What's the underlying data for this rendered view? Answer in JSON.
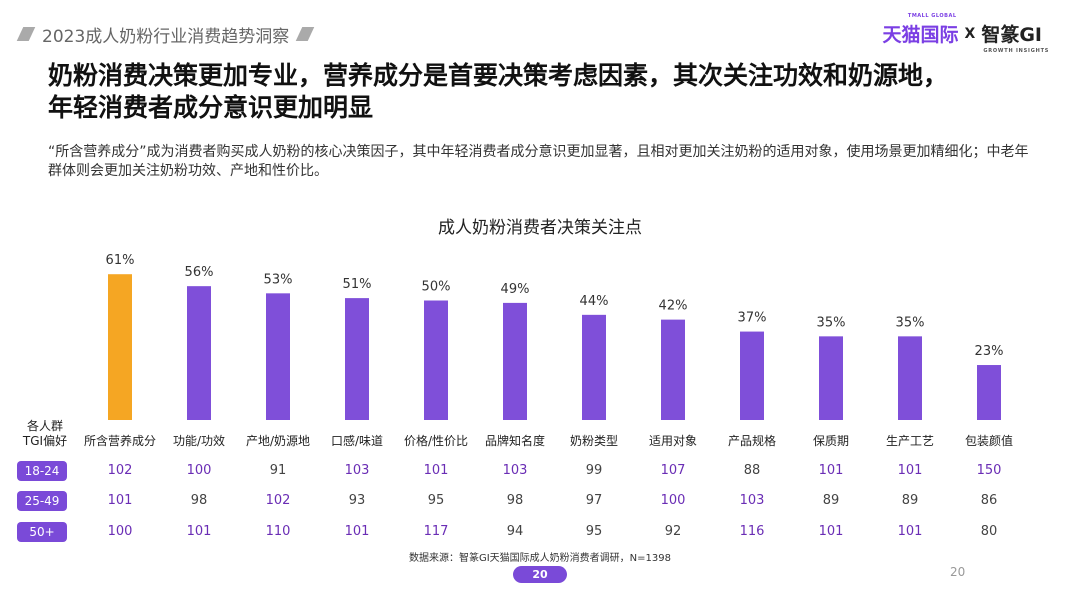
{
  "header": {
    "report_title": "2023成人奶粉行业消费趋势洞察",
    "brand_tmall": "天猫国际",
    "brand_tmall_sub": "TMALL GLOBAL",
    "brand_x": "X",
    "brand_gi": "智篆GI",
    "brand_gi_sub": "GROWTH INSIGHTS"
  },
  "headline": {
    "line1": "奶粉消费决策更加专业，营养成分是首要决策考虑因素，其次关注功效和奶源地，",
    "line2": "年轻消费者成分意识更加明显"
  },
  "subtext": "“所含营养成分”成为消费者购买成人奶粉的核心决策因子，其中年轻消费者成分意识更加显著，且相对更加关注奶粉的适用对象，使用场景更加精细化；中老年群体则会更加关注奶粉功效、产地和性价比。",
  "chart_data": {
    "type": "bar",
    "title": "成人奶粉消费者决策关注点",
    "categories": [
      "所含营养成分",
      "功能/功效",
      "产地/奶源地",
      "口感/味道",
      "价格/性价比",
      "品牌知名度",
      "奶粉类型",
      "适用对象",
      "产品规格",
      "保质期",
      "生产工艺",
      "包装颜值"
    ],
    "values": [
      61,
      56,
      53,
      51,
      50,
      49,
      44,
      42,
      37,
      35,
      35,
      23
    ],
    "value_labels": [
      "61%",
      "56%",
      "53%",
      "51%",
      "50%",
      "49%",
      "44%",
      "42%",
      "37%",
      "35%",
      "35%",
      "23%"
    ],
    "unit": "%",
    "ylim": [
      0,
      100
    ],
    "highlight_index": 0,
    "colors": {
      "highlight": "#f5a623",
      "bar": "#7f4fd9"
    },
    "grid": false,
    "legend": "none"
  },
  "tgi_table": {
    "label_line1": "各人群",
    "label_line2": "TGI偏好",
    "colors": {
      "above_100": "#6a2db5",
      "below_100": "#444444",
      "pill": "#7a4ad8"
    },
    "rows": [
      {
        "group": "18-24",
        "values": [
          102,
          100,
          91,
          103,
          101,
          103,
          99,
          107,
          88,
          101,
          101,
          150
        ]
      },
      {
        "group": "25-49",
        "values": [
          101,
          98,
          102,
          93,
          95,
          98,
          97,
          100,
          103,
          89,
          89,
          86
        ]
      },
      {
        "group": "50+",
        "values": [
          100,
          101,
          110,
          101,
          117,
          94,
          95,
          92,
          116,
          101,
          101,
          80
        ]
      }
    ]
  },
  "footer": {
    "source": "数据来源：智篆GI天猫国际成人奶粉消费者调研，N=1398",
    "page_pill": "20",
    "page_number": "20"
  }
}
